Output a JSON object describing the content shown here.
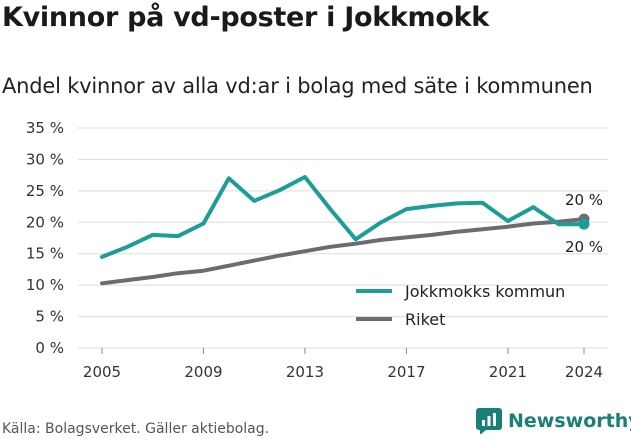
{
  "header": {
    "title": "Kvinnor på vd-poster i Jokkmokk",
    "subtitle": "Andel kvinnor av alla vd:ar i bolag med säte i kommunen"
  },
  "footer": {
    "source": "Källa: Bolagsverket. Gäller aktiebolag.",
    "brand": "Newsworthy",
    "brand_icon": "newsworthy-logo-icon"
  },
  "colors": {
    "jokkmokk": "#1a9e96",
    "riket": "#6d6a70",
    "grid": "#dddddd",
    "brand": "#1b7f79"
  },
  "chart_data": {
    "type": "line",
    "x": [
      2005,
      2006,
      2007,
      2008,
      2009,
      2010,
      2011,
      2012,
      2013,
      2014,
      2015,
      2016,
      2017,
      2018,
      2019,
      2020,
      2021,
      2022,
      2023,
      2024
    ],
    "x_ticks": [
      {
        "value": 2005,
        "label": "2005"
      },
      {
        "value": 2009,
        "label": "2009"
      },
      {
        "value": 2013,
        "label": "2013"
      },
      {
        "value": 2017,
        "label": "2017"
      },
      {
        "value": 2021,
        "label": "2021"
      },
      {
        "value": 2024,
        "label": "2024"
      }
    ],
    "y_ticks": [
      {
        "value": 0,
        "label": "0 %"
      },
      {
        "value": 5,
        "label": "5 %"
      },
      {
        "value": 10,
        "label": "10 %"
      },
      {
        "value": 15,
        "label": "15 %"
      },
      {
        "value": 20,
        "label": "20 %"
      },
      {
        "value": 25,
        "label": "25 %"
      },
      {
        "value": 30,
        "label": "30 %"
      },
      {
        "value": 35,
        "label": "35 %"
      }
    ],
    "ylim": [
      0,
      35
    ],
    "xlim": [
      2005,
      2024
    ],
    "grid": "horizontal",
    "legend_position": "bottom-right",
    "series": [
      {
        "name": "Jokkmokks kommun",
        "color": "#1a9e96",
        "values": [
          14.5,
          16.1,
          18.0,
          17.8,
          19.8,
          27.0,
          23.4,
          25.1,
          27.2,
          22.1,
          17.3,
          20.0,
          22.1,
          22.6,
          23.0,
          23.1,
          20.2,
          22.4,
          19.7,
          19.7
        ],
        "end_label": "20 %"
      },
      {
        "name": "Riket",
        "color": "#6d6a70",
        "values": [
          10.3,
          10.8,
          11.3,
          11.9,
          12.3,
          13.1,
          13.9,
          14.7,
          15.4,
          16.1,
          16.6,
          17.2,
          17.6,
          18.0,
          18.5,
          18.9,
          19.3,
          19.8,
          20.1,
          20.5
        ],
        "end_label": "20 %"
      }
    ]
  }
}
